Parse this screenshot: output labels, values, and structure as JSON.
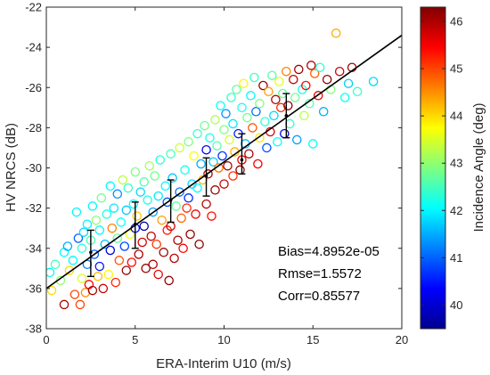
{
  "chart_data": {
    "type": "scatter",
    "xlabel": "ERA-Interim U10 (m/s)",
    "ylabel": "HV NRCS (dB)",
    "xlim": [
      0,
      20
    ],
    "ylim": [
      -38,
      -22
    ],
    "x_ticks": [
      "0",
      "5",
      "10",
      "15",
      "20"
    ],
    "y_ticks": [
      "-22",
      "-24",
      "-26",
      "-28",
      "-30",
      "-32",
      "-34",
      "-36",
      "-38"
    ],
    "grid": false,
    "marker": "open-circle",
    "colorbar": {
      "label": "Incidence Angle (deg)",
      "range": [
        39.5,
        46.3
      ],
      "ticks": [
        "40",
        "41",
        "42",
        "43",
        "44",
        "45",
        "46"
      ],
      "colormap": "jet"
    },
    "fit_line": {
      "x": [
        0,
        20
      ],
      "y": [
        -36.0,
        -23.4
      ]
    },
    "error_bars": [
      {
        "x": 2.5,
        "mean": -34.2,
        "low": -35.4,
        "high": -33.1
      },
      {
        "x": 5.0,
        "mean": -32.8,
        "low": -34.0,
        "high": -31.7
      },
      {
        "x": 7.0,
        "mean": -31.6,
        "low": -32.7,
        "high": -30.6
      },
      {
        "x": 9.0,
        "mean": -30.4,
        "low": -31.4,
        "high": -29.5
      },
      {
        "x": 11.0,
        "mean": -29.6,
        "low": -30.3,
        "high": -28.3
      },
      {
        "x": 13.5,
        "mean": -27.4,
        "low": -28.5,
        "high": -26.3
      }
    ],
    "annotations": [
      "Bias=4.8952e-05",
      "Rmse=1.5572",
      "Corr=0.85577"
    ],
    "series": [
      {
        "points": [
          [
            0.2,
            -35.2,
            42
          ],
          [
            0.3,
            -36.1,
            44
          ],
          [
            0.5,
            -34.8,
            42.5
          ],
          [
            0.8,
            -35.6,
            43
          ],
          [
            1.0,
            -34.2,
            42
          ],
          [
            1.0,
            -36.8,
            46
          ],
          [
            1.2,
            -33.9,
            41.5
          ],
          [
            1.3,
            -35.1,
            44
          ],
          [
            1.5,
            -34.6,
            42
          ],
          [
            1.6,
            -36.3,
            45
          ],
          [
            1.7,
            -32.2,
            42
          ],
          [
            1.8,
            -33.5,
            41
          ],
          [
            1.9,
            -36.8,
            45
          ],
          [
            2.0,
            -34.0,
            42.3
          ],
          [
            2.0,
            -35.5,
            43.5
          ],
          [
            2.1,
            -33.2,
            41.8
          ],
          [
            2.2,
            -36.2,
            44.5
          ],
          [
            2.3,
            -32.8,
            42
          ],
          [
            2.3,
            -34.8,
            41.2
          ],
          [
            2.4,
            -35.8,
            45.5
          ],
          [
            2.5,
            -33.6,
            42.5
          ],
          [
            2.6,
            -31.9,
            42
          ],
          [
            2.6,
            -36.1,
            46
          ],
          [
            2.7,
            -34.3,
            41
          ],
          [
            2.8,
            -32.6,
            43
          ],
          [
            2.9,
            -35.4,
            44.2
          ],
          [
            3.0,
            -33.1,
            42
          ],
          [
            3.0,
            -34.9,
            40.5
          ],
          [
            3.1,
            -31.5,
            42.8
          ],
          [
            3.2,
            -36.0,
            45.8
          ],
          [
            3.3,
            -33.8,
            41.6
          ],
          [
            3.4,
            -32.3,
            42.2
          ],
          [
            3.5,
            -35.3,
            43.8
          ],
          [
            3.6,
            -30.9,
            42
          ],
          [
            3.6,
            -34.1,
            40.2
          ],
          [
            3.7,
            -33.0,
            44.6
          ],
          [
            3.8,
            -32.0,
            41.9
          ],
          [
            3.9,
            -35.7,
            45.2
          ],
          [
            4.0,
            -33.5,
            42.7
          ],
          [
            4.0,
            -31.3,
            41.3
          ],
          [
            4.1,
            -34.6,
            44.9
          ],
          [
            4.2,
            -32.7,
            42.1
          ],
          [
            4.3,
            -30.6,
            43.3
          ],
          [
            4.4,
            -33.9,
            40.8
          ],
          [
            4.5,
            -35.1,
            46.1
          ],
          [
            4.5,
            -32.1,
            41.7
          ],
          [
            4.6,
            -31.0,
            42.4
          ],
          [
            4.7,
            -33.3,
            43.6
          ],
          [
            4.8,
            -34.7,
            45.4
          ],
          [
            4.9,
            -31.8,
            42
          ],
          [
            5.0,
            -30.2,
            42.9
          ],
          [
            5.0,
            -33.0,
            40.4
          ],
          [
            5.1,
            -32.4,
            44.1
          ],
          [
            5.2,
            -34.3,
            46
          ],
          [
            5.3,
            -31.2,
            41.8
          ],
          [
            5.4,
            -33.7,
            45.7
          ],
          [
            5.5,
            -30.7,
            42.6
          ],
          [
            5.5,
            -32.9,
            39.8
          ],
          [
            5.6,
            -35.0,
            46.2
          ],
          [
            5.7,
            -31.6,
            42.2
          ],
          [
            5.8,
            -29.9,
            43.1
          ],
          [
            5.9,
            -33.4,
            45.9
          ],
          [
            6.0,
            -32.2,
            41.4
          ],
          [
            6.0,
            -34.8,
            46
          ],
          [
            6.1,
            -30.4,
            42.8
          ],
          [
            6.2,
            -33.8,
            45.1
          ],
          [
            6.3,
            -31.4,
            41.9
          ],
          [
            6.3,
            -35.3,
            45.6
          ],
          [
            6.4,
            -29.6,
            42.3
          ],
          [
            6.5,
            -32.6,
            44.4
          ],
          [
            6.6,
            -34.2,
            46.1
          ],
          [
            6.7,
            -30.9,
            42
          ],
          [
            6.8,
            -33.1,
            45.3
          ],
          [
            6.8,
            -31.7,
            40.9
          ],
          [
            6.9,
            -35.6,
            46.2
          ],
          [
            7.0,
            -29.3,
            42.5
          ],
          [
            7.0,
            -32.9,
            45.8
          ],
          [
            7.1,
            -30.5,
            41.6
          ],
          [
            7.2,
            -34.5,
            45.9
          ],
          [
            7.3,
            -31.9,
            42.7
          ],
          [
            7.4,
            -33.6,
            46
          ],
          [
            7.5,
            -29.0,
            43.4
          ],
          [
            7.5,
            -31.2,
            41.1
          ],
          [
            7.6,
            -32.5,
            44.8
          ],
          [
            7.7,
            -34.0,
            45.5
          ],
          [
            7.8,
            -30.1,
            42.1
          ],
          [
            7.9,
            -32.0,
            45.2
          ],
          [
            8.0,
            -28.7,
            42.9
          ],
          [
            8.0,
            -31.5,
            40.6
          ],
          [
            8.1,
            -33.3,
            46.1
          ],
          [
            8.2,
            -30.8,
            41.8
          ],
          [
            8.3,
            -29.4,
            43.7
          ],
          [
            8.4,
            -32.3,
            45.6
          ],
          [
            8.5,
            -28.3,
            42.4
          ],
          [
            8.5,
            -31.0,
            42
          ],
          [
            8.6,
            -33.8,
            46.2
          ],
          [
            8.7,
            -29.8,
            41.5
          ],
          [
            8.8,
            -30.6,
            44.2
          ],
          [
            8.9,
            -27.9,
            42.8
          ],
          [
            9.0,
            -31.8,
            45.9
          ],
          [
            9.0,
            -29.1,
            40.3
          ],
          [
            9.1,
            -30.3,
            46
          ],
          [
            9.2,
            -28.5,
            42.2
          ],
          [
            9.3,
            -32.4,
            45.4
          ],
          [
            9.4,
            -29.7,
            41.7
          ],
          [
            9.5,
            -27.6,
            43.2
          ],
          [
            9.5,
            -31.1,
            46.1
          ],
          [
            9.6,
            -28.9,
            42.6
          ],
          [
            9.7,
            -30.0,
            44.7
          ],
          [
            9.8,
            -26.9,
            42.1
          ],
          [
            9.9,
            -29.4,
            40.7
          ],
          [
            10.0,
            -30.8,
            45.8
          ],
          [
            10.0,
            -28.1,
            42.9
          ],
          [
            10.1,
            -27.3,
            41.3
          ],
          [
            10.2,
            -29.9,
            46
          ],
          [
            10.3,
            -28.6,
            43.5
          ],
          [
            10.4,
            -26.5,
            42.4
          ],
          [
            10.5,
            -30.4,
            45.1
          ],
          [
            10.5,
            -27.8,
            41.9
          ],
          [
            10.6,
            -29.2,
            44.3
          ],
          [
            10.7,
            -26.1,
            42.7
          ],
          [
            10.8,
            -28.3,
            40.5
          ],
          [
            10.9,
            -30.1,
            46.2
          ],
          [
            11.0,
            -27.0,
            42.2
          ],
          [
            11.0,
            -29.6,
            45.6
          ],
          [
            11.1,
            -25.8,
            43.8
          ],
          [
            11.2,
            -28.8,
            41.6
          ],
          [
            11.3,
            -27.5,
            42.8
          ],
          [
            11.4,
            -29.3,
            46
          ],
          [
            11.5,
            -26.4,
            42
          ],
          [
            11.6,
            -28.0,
            44.9
          ],
          [
            11.7,
            -25.5,
            42.5
          ],
          [
            11.8,
            -27.2,
            41.1
          ],
          [
            11.9,
            -29.8,
            45.5
          ],
          [
            12.0,
            -26.8,
            42.9
          ],
          [
            12.0,
            -28.5,
            43.9
          ],
          [
            12.2,
            -25.9,
            46.1
          ],
          [
            12.3,
            -27.7,
            42.3
          ],
          [
            12.4,
            -29.0,
            40.9
          ],
          [
            12.5,
            -26.2,
            44.4
          ],
          [
            12.6,
            -28.2,
            45.7
          ],
          [
            12.7,
            -25.4,
            42.6
          ],
          [
            12.8,
            -27.4,
            41.8
          ],
          [
            12.9,
            -26.6,
            46
          ],
          [
            13.0,
            -28.7,
            42.1
          ],
          [
            13.1,
            -25.7,
            43.6
          ],
          [
            13.2,
            -27.0,
            45.2
          ],
          [
            13.3,
            -26.3,
            42.7
          ],
          [
            13.4,
            -28.3,
            40.1
          ],
          [
            13.5,
            -25.2,
            44.6
          ],
          [
            13.6,
            -26.9,
            46.2
          ],
          [
            13.7,
            -27.8,
            42.4
          ],
          [
            13.9,
            -25.6,
            45.9
          ],
          [
            14.0,
            -26.5,
            42.8
          ],
          [
            14.1,
            -28.6,
            41.4
          ],
          [
            14.2,
            -25.1,
            46.1
          ],
          [
            14.4,
            -26.1,
            42.2
          ],
          [
            14.5,
            -27.4,
            43.3
          ],
          [
            14.6,
            -25.9,
            45.4
          ],
          [
            14.8,
            -26.8,
            42.6
          ],
          [
            14.9,
            -24.9,
            46
          ],
          [
            15.0,
            -28.8,
            42
          ],
          [
            15.1,
            -25.3,
            44.8
          ],
          [
            15.3,
            -26.4,
            45.6
          ],
          [
            15.4,
            -25.0,
            42.3
          ],
          [
            15.6,
            -27.2,
            41.5
          ],
          [
            15.8,
            -25.6,
            46.2
          ],
          [
            16.0,
            -26.1,
            42.9
          ],
          [
            16.3,
            -23.3,
            44.3
          ],
          [
            16.5,
            -25.2,
            45.8
          ],
          [
            16.8,
            -26.5,
            42.1
          ],
          [
            17.0,
            -25.8,
            41.7
          ],
          [
            17.2,
            -25.0,
            46.1
          ],
          [
            17.5,
            -26.2,
            42.4
          ],
          [
            18.4,
            -25.7,
            41.8
          ]
        ]
      }
    ]
  }
}
